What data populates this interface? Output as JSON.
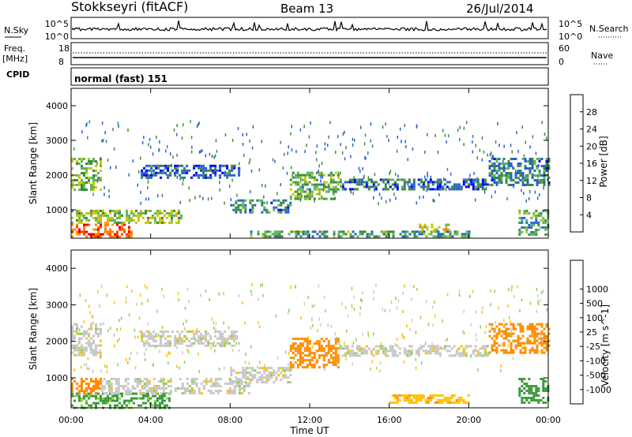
{
  "header": {
    "station": "Stokkseyri (fitACF)",
    "beam": "Beam 13",
    "date": "26/Jul/2014"
  },
  "noise_panel": {
    "left_label": "N.Sky",
    "right_label": "N.Search",
    "left_ticks": [
      "10^5",
      "10^0"
    ],
    "right_ticks": [
      "10^5",
      "10^0"
    ]
  },
  "freq_panel": {
    "left_label_top": "Freq.",
    "left_label_bottom": "[MHz]",
    "left_ticks": [
      "18",
      "8"
    ],
    "right_label": "Nave",
    "right_ticks": [
      "60",
      "0"
    ]
  },
  "cpid": {
    "label": "CPID",
    "value": "normal (fast) 151"
  },
  "colors": {
    "power": [
      "#0000ee",
      "#2a5fd4",
      "#3d8a3d",
      "#5fb45f",
      "#c8c800",
      "#ffa500",
      "#ff7f00",
      "#ff4500",
      "#ee0000"
    ],
    "velocity": [
      "#ee0000",
      "#ff4500",
      "#ff8c00",
      "#ffc000",
      "#c8c8c8",
      "#90d050",
      "#3c9a3c",
      "#3c8c8c",
      "#2a5fd4",
      "#0000ee"
    ]
  },
  "chart_data": [
    {
      "type": "heatmap",
      "name": "power",
      "ylabel": "Slant Range [km]",
      "ylim": [
        180,
        4500
      ],
      "yticks": [
        1000,
        2000,
        3000,
        4000
      ],
      "xlim": [
        0,
        24
      ],
      "colorbar": {
        "label": "Power [dB]",
        "ticks": [
          4,
          8,
          12,
          16,
          20,
          24,
          28
        ],
        "range": [
          0,
          32
        ]
      },
      "regions": [
        {
          "t0": 0,
          "t1": 3.0,
          "r0": 200,
          "r1": 600,
          "v": 25
        },
        {
          "t0": 0,
          "t1": 5.5,
          "r0": 600,
          "r1": 1000,
          "v": 14
        },
        {
          "t0": 0,
          "t1": 1.5,
          "r0": 1600,
          "r1": 2500,
          "v": 12
        },
        {
          "t0": 3.5,
          "t1": 8.5,
          "r0": 1900,
          "r1": 2300,
          "v": 6
        },
        {
          "t0": 8.0,
          "t1": 11.0,
          "r0": 900,
          "r1": 1300,
          "v": 8
        },
        {
          "t0": 11.0,
          "t1": 13.5,
          "r0": 1300,
          "r1": 2100,
          "v": 12
        },
        {
          "t0": 9.0,
          "t1": 20.0,
          "r0": 200,
          "r1": 400,
          "v": 10
        },
        {
          "t0": 17.5,
          "t1": 19.0,
          "r0": 400,
          "r1": 600,
          "v": 18
        },
        {
          "t0": 13.5,
          "t1": 21.0,
          "r0": 1600,
          "r1": 1900,
          "v": 6
        },
        {
          "t0": 21.0,
          "t1": 24.0,
          "r0": 1700,
          "r1": 2500,
          "v": 8
        },
        {
          "t0": 22.5,
          "t1": 24.0,
          "r0": 300,
          "r1": 1000,
          "v": 10
        }
      ]
    },
    {
      "type": "heatmap",
      "name": "velocity",
      "ylabel": "Slant Range [km]",
      "xlabel": "Time UT",
      "ylim": [
        180,
        4500
      ],
      "yticks": [
        1000,
        2000,
        3000,
        4000
      ],
      "xlim": [
        0,
        24
      ],
      "xticks": [
        0,
        4,
        8,
        12,
        16,
        20,
        24
      ],
      "xtick_labels": [
        "00:00",
        "04:00",
        "08:00",
        "12:00",
        "16:00",
        "20:00",
        "00:00"
      ],
      "colorbar": {
        "label": "Velocity [m s^-1]",
        "ticks": [
          -1000,
          -500,
          -100,
          -25,
          25,
          100,
          500,
          1000
        ]
      },
      "regions": [
        {
          "t0": 0,
          "t1": 5.0,
          "r0": 200,
          "r1": 600,
          "v": 120
        },
        {
          "t0": 0,
          "t1": 1.5,
          "r0": 600,
          "r1": 1000,
          "v": -200
        },
        {
          "t0": 1.5,
          "t1": 9.0,
          "r0": 600,
          "r1": 1000,
          "v": 0
        },
        {
          "t0": 0,
          "t1": 1.5,
          "r0": 1600,
          "r1": 2500,
          "v": 0
        },
        {
          "t0": 3.5,
          "t1": 8.5,
          "r0": 1900,
          "r1": 2300,
          "v": 0
        },
        {
          "t0": 8.0,
          "t1": 11.0,
          "r0": 900,
          "r1": 1300,
          "v": 0
        },
        {
          "t0": 11.0,
          "t1": 13.5,
          "r0": 1300,
          "r1": 2100,
          "v": -300
        },
        {
          "t0": 13.5,
          "t1": 21.0,
          "r0": 1600,
          "r1": 1900,
          "v": 0
        },
        {
          "t0": 16.0,
          "t1": 20.0,
          "r0": 350,
          "r1": 550,
          "v": -80
        },
        {
          "t0": 21.0,
          "t1": 24.0,
          "r0": 1700,
          "r1": 2500,
          "v": -200
        },
        {
          "t0": 22.5,
          "t1": 24.0,
          "r0": 300,
          "r1": 1000,
          "v": 400
        }
      ]
    }
  ]
}
